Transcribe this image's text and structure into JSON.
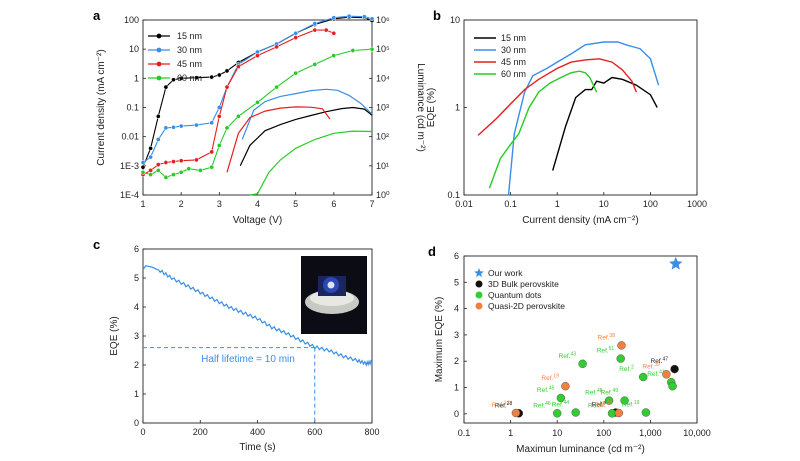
{
  "chart_data": [
    {
      "panel": "a",
      "type": "line",
      "xlabel": "Voltage (V)",
      "ylabel": "Current density (mA cm⁻²)",
      "y2label": "Luminance (cd m⁻²)",
      "xlim": [
        1,
        7
      ],
      "ylim": [
        0.0001,
        100
      ],
      "y2lim": [
        1,
        1000000
      ],
      "yscale": "log",
      "y2scale": "log",
      "x_ticks": [
        "1",
        "2",
        "3",
        "4",
        "5",
        "6",
        "7"
      ],
      "y_ticks": [
        "1E-4",
        "1E-3",
        "0.01",
        "0.1",
        "1",
        "10",
        "100"
      ],
      "y2_ticks": [
        "10⁰",
        "10¹",
        "10²",
        "10³",
        "10⁴",
        "10⁵",
        "10⁶"
      ],
      "legend_position": "top-left",
      "series": [
        {
          "name": "15 nm",
          "color": "#000000",
          "jv": [
            [
              1.0,
              0.0009
            ],
            [
              1.2,
              0.004
            ],
            [
              1.4,
              0.05
            ],
            [
              1.6,
              0.5
            ],
            [
              1.8,
              0.9
            ],
            [
              2.0,
              1.0
            ],
            [
              2.4,
              1.05
            ],
            [
              2.8,
              1.1
            ],
            [
              3.0,
              1.3
            ],
            [
              3.2,
              1.8
            ],
            [
              3.5,
              3.5
            ],
            [
              4.0,
              8
            ],
            [
              4.5,
              15
            ],
            [
              5.0,
              35
            ],
            [
              5.5,
              70
            ],
            [
              6.0,
              110
            ],
            [
              6.4,
              125
            ],
            [
              6.8,
              120
            ],
            [
              7.0,
              95
            ]
          ],
          "lv": [
            [
              3.55,
              10
            ],
            [
              3.8,
              50
            ],
            [
              4.2,
              160
            ],
            [
              4.6,
              260
            ],
            [
              5.0,
              390
            ],
            [
              5.4,
              530
            ],
            [
              5.8,
              720
            ],
            [
              6.2,
              920
            ],
            [
              6.5,
              1000
            ],
            [
              6.8,
              880
            ],
            [
              7.0,
              550
            ]
          ]
        },
        {
          "name": "30 nm",
          "color": "#3a8ee6",
          "jv": [
            [
              1.0,
              0.0013
            ],
            [
              1.2,
              0.002
            ],
            [
              1.4,
              0.008
            ],
            [
              1.6,
              0.02
            ],
            [
              1.8,
              0.021
            ],
            [
              2.0,
              0.023
            ],
            [
              2.4,
              0.025
            ],
            [
              2.8,
              0.03
            ],
            [
              3.0,
              0.1
            ],
            [
              3.2,
              0.5
            ],
            [
              3.5,
              3
            ],
            [
              4.0,
              8
            ],
            [
              4.5,
              15
            ],
            [
              5.0,
              35
            ],
            [
              5.5,
              75
            ],
            [
              6.0,
              120
            ],
            [
              6.4,
              135
            ],
            [
              6.8,
              130
            ],
            [
              7.0,
              110
            ]
          ],
          "lv": [
            [
              3.6,
              80
            ],
            [
              3.9,
              800
            ],
            [
              4.2,
              1600
            ],
            [
              4.6,
              2400
            ],
            [
              5.0,
              3000
            ],
            [
              5.4,
              3800
            ],
            [
              5.8,
              4200
            ],
            [
              6.1,
              3900
            ],
            [
              6.4,
              2600
            ],
            [
              6.7,
              1400
            ],
            [
              7.0,
              600
            ]
          ]
        },
        {
          "name": "45 nm",
          "color": "#e81e1e",
          "jv": [
            [
              1.0,
              0.0005
            ],
            [
              1.2,
              0.0007
            ],
            [
              1.4,
              0.0011
            ],
            [
              1.6,
              0.0013
            ],
            [
              1.8,
              0.0014
            ],
            [
              2.0,
              0.0015
            ],
            [
              2.4,
              0.0016
            ],
            [
              2.8,
              0.003
            ],
            [
              3.0,
              0.05
            ],
            [
              3.2,
              0.5
            ],
            [
              3.5,
              2.5
            ],
            [
              4.0,
              6
            ],
            [
              4.5,
              12
            ],
            [
              5.0,
              25
            ],
            [
              5.5,
              45
            ],
            [
              5.8,
              45
            ],
            [
              6.0,
              35
            ]
          ],
          "lv": [
            [
              3.2,
              6
            ],
            [
              3.5,
              130
            ],
            [
              3.8,
              450
            ],
            [
              4.2,
              750
            ],
            [
              4.6,
              950
            ],
            [
              5.0,
              1050
            ],
            [
              5.4,
              1020
            ],
            [
              5.7,
              900
            ],
            [
              5.9,
              400
            ]
          ]
        },
        {
          "name": "60 nm",
          "color": "#25cc25",
          "jv": [
            [
              1.0,
              0.0006
            ],
            [
              1.2,
              0.0005
            ],
            [
              1.4,
              0.0007
            ],
            [
              1.6,
              0.0004
            ],
            [
              1.8,
              0.0005
            ],
            [
              2.0,
              0.0006
            ],
            [
              2.2,
              0.0008
            ],
            [
              2.5,
              0.0007
            ],
            [
              2.8,
              0.0009
            ],
            [
              3.0,
              0.005
            ],
            [
              3.2,
              0.02
            ],
            [
              3.5,
              0.05
            ],
            [
              4.0,
              0.15
            ],
            [
              4.5,
              0.5
            ],
            [
              5.0,
              1.5
            ],
            [
              5.5,
              3
            ],
            [
              6.0,
              6
            ],
            [
              6.5,
              9
            ],
            [
              7.0,
              10
            ]
          ],
          "lv": [
            [
              3.8,
              1.0
            ],
            [
              4.0,
              1.1
            ],
            [
              4.3,
              6
            ],
            [
              4.6,
              16
            ],
            [
              5.0,
              40
            ],
            [
              5.5,
              80
            ],
            [
              6.0,
              130
            ],
            [
              6.5,
              155
            ],
            [
              7.0,
              150
            ]
          ]
        }
      ]
    },
    {
      "panel": "b",
      "type": "line",
      "xlabel": "Current density (mA cm⁻²)",
      "ylabel": "EQE (%)",
      "xscale": "log",
      "yscale": "log",
      "xlim": [
        0.01,
        1000
      ],
      "ylim": [
        0.1,
        10
      ],
      "x_ticks": [
        "0.01",
        "0.1",
        "1",
        "10",
        "100",
        "1000"
      ],
      "y_ticks": [
        "0.1",
        "1",
        "10"
      ],
      "legend_position": "top-left",
      "series": [
        {
          "name": "15 nm",
          "color": "#000000",
          "points": [
            [
              0.8,
              0.19
            ],
            [
              1.5,
              0.6
            ],
            [
              2.5,
              1.3
            ],
            [
              4,
              1.6
            ],
            [
              5.5,
              1.6
            ],
            [
              7,
              2.0
            ],
            [
              10,
              1.9
            ],
            [
              15,
              2.2
            ],
            [
              25,
              2.1
            ],
            [
              50,
              1.8
            ],
            [
              100,
              1.4
            ],
            [
              140,
              1.0
            ]
          ]
        },
        {
          "name": "30 nm",
          "color": "#3a8ee6",
          "points": [
            [
              0.09,
              0.1
            ],
            [
              0.12,
              0.5
            ],
            [
              0.2,
              1.5
            ],
            [
              0.3,
              2.3
            ],
            [
              0.6,
              2.8
            ],
            [
              1,
              3.3
            ],
            [
              2,
              4.1
            ],
            [
              4,
              5.2
            ],
            [
              10,
              5.6
            ],
            [
              20,
              5.6
            ],
            [
              30,
              5.2
            ],
            [
              60,
              4.7
            ],
            [
              100,
              3.6
            ],
            [
              150,
              1.8
            ]
          ]
        },
        {
          "name": "45 nm",
          "color": "#e81e1e",
          "points": [
            [
              0.02,
              0.48
            ],
            [
              0.05,
              0.75
            ],
            [
              0.1,
              1.1
            ],
            [
              0.2,
              1.6
            ],
            [
              0.4,
              2.1
            ],
            [
              1,
              2.8
            ],
            [
              2,
              3.3
            ],
            [
              4,
              3.5
            ],
            [
              8,
              3.6
            ],
            [
              15,
              3.3
            ],
            [
              25,
              2.7
            ],
            [
              40,
              2.0
            ],
            [
              50,
              1.5
            ]
          ]
        },
        {
          "name": "60 nm",
          "color": "#25cc25",
          "points": [
            [
              0.035,
              0.12
            ],
            [
              0.06,
              0.26
            ],
            [
              0.1,
              0.38
            ],
            [
              0.15,
              0.5
            ],
            [
              0.25,
              1.0
            ],
            [
              0.4,
              1.5
            ],
            [
              0.7,
              1.9
            ],
            [
              1.2,
              2.2
            ],
            [
              2,
              2.5
            ],
            [
              3,
              2.6
            ],
            [
              4,
              2.5
            ],
            [
              5,
              2.2
            ],
            [
              7,
              1.5
            ]
          ]
        }
      ]
    },
    {
      "panel": "c",
      "type": "line",
      "xlabel": "Time (s)",
      "ylabel": "EQE (%)",
      "xlim": [
        0,
        800
      ],
      "ylim": [
        0,
        6
      ],
      "x_ticks": [
        "0",
        "200",
        "400",
        "600",
        "800"
      ],
      "y_ticks": [
        "0",
        "1",
        "2",
        "3",
        "4",
        "5",
        "6"
      ],
      "annotation": "Half lifetime = 10 min",
      "half_value": 2.6,
      "half_time": 600,
      "series": [
        {
          "color": "#3a8ee6",
          "points": [
            [
              0,
              5.3
            ],
            [
              10,
              5.42
            ],
            [
              30,
              5.38
            ],
            [
              60,
              5.25
            ],
            [
              100,
              5.0
            ],
            [
              150,
              4.75
            ],
            [
              200,
              4.5
            ],
            [
              250,
              4.25
            ],
            [
              300,
              4.0
            ],
            [
              350,
              3.8
            ],
            [
              400,
              3.6
            ],
            [
              450,
              3.3
            ],
            [
              500,
              3.1
            ],
            [
              550,
              2.85
            ],
            [
              600,
              2.62
            ],
            [
              650,
              2.5
            ],
            [
              700,
              2.3
            ],
            [
              750,
              2.15
            ],
            [
              780,
              2.05
            ],
            [
              800,
              2.1
            ]
          ]
        }
      ]
    },
    {
      "panel": "d",
      "type": "scatter",
      "xlabel": "Maximun luminance (cd m⁻²)",
      "ylabel": "Maximum EQE (%)",
      "xscale": "log",
      "xlim": [
        0.1,
        10000
      ],
      "ylim": [
        -0.35,
        6
      ],
      "x_ticks": [
        "0.1",
        "1",
        "10",
        "100",
        "1,000",
        "10,000"
      ],
      "y_ticks": [
        "0",
        "1",
        "2",
        "3",
        "4",
        "5",
        "6"
      ],
      "legend_position": "top-left",
      "legend": [
        {
          "name": "Our work",
          "marker": "star",
          "color": "#3a8ee6"
        },
        {
          "name": "3D Bulk perovskite",
          "marker": "circle",
          "color": "#111111"
        },
        {
          "name": "Quantum dots",
          "marker": "circle",
          "color": "#33cc33"
        },
        {
          "name": "Quasi-2D perovskite",
          "marker": "circle",
          "color": "#f08040"
        }
      ],
      "points": [
        {
          "x": 3500,
          "y": 5.7,
          "group": "Our work"
        },
        {
          "x": 1.5,
          "y": 0.02,
          "group": "3D Bulk perovskite",
          "label": "Ref.",
          "sup": "28"
        },
        {
          "x": 180,
          "y": 0.05,
          "group": "3D Bulk perovskite",
          "label": "Ref.",
          "sup": "42"
        },
        {
          "x": 3300,
          "y": 1.7,
          "group": "3D Bulk perovskite",
          "label": "Ref.",
          "sup": "47"
        },
        {
          "x": 35,
          "y": 1.9,
          "group": "Quantum dots",
          "label": "Ref.",
          "sup": "43"
        },
        {
          "x": 230,
          "y": 2.1,
          "group": "Quantum dots",
          "label": "Ref.",
          "sup": "51"
        },
        {
          "x": 12,
          "y": 0.6,
          "group": "Quantum dots",
          "label": "Ref.",
          "sup": "45"
        },
        {
          "x": 10,
          "y": 0.02,
          "group": "Quantum dots",
          "label": "Ref.",
          "sup": "46"
        },
        {
          "x": 25,
          "y": 0.05,
          "group": "Quantum dots",
          "label": "Ref.",
          "sup": "44"
        },
        {
          "x": 130,
          "y": 0.5,
          "group": "Quantum dots",
          "label": "Ref.",
          "sup": "48"
        },
        {
          "x": 280,
          "y": 0.5,
          "group": "Quantum dots",
          "label": "Ref.",
          "sup": "49"
        },
        {
          "x": 700,
          "y": 1.4,
          "group": "Quantum dots",
          "label": "Ref.",
          "sup": "2"
        },
        {
          "x": 150,
          "y": 0.02,
          "group": "Quantum dots",
          "label": "Ref.",
          "sup": "50"
        },
        {
          "x": 800,
          "y": 0.05,
          "group": "Quantum dots",
          "label": "Ref.",
          "sup": "19"
        },
        {
          "x": 2800,
          "y": 1.2,
          "group": "Quantum dots",
          "label": "Ref.",
          "sup": "41"
        },
        {
          "x": 3000,
          "y": 1.05,
          "group": "Quantum dots"
        },
        {
          "x": 240,
          "y": 2.6,
          "group": "Quasi-2D perovskite",
          "label": "Ref.",
          "sup": "38"
        },
        {
          "x": 15,
          "y": 1.05,
          "group": "Quasi-2D perovskite",
          "label": "Ref.",
          "sup": "19"
        },
        {
          "x": 1.3,
          "y": 0.03,
          "group": "Quasi-2D perovskite",
          "label": "Ref.",
          "sup": "14"
        },
        {
          "x": 2200,
          "y": 1.5,
          "group": "Quasi-2D perovskite",
          "label": "Ref.",
          "sup": "39"
        },
        {
          "x": 210,
          "y": 0.03,
          "group": "Quasi-2D perovskite",
          "label": "Ref.",
          "sup": "40"
        }
      ]
    }
  ],
  "panel_labels": [
    "a",
    "b",
    "c",
    "d"
  ]
}
